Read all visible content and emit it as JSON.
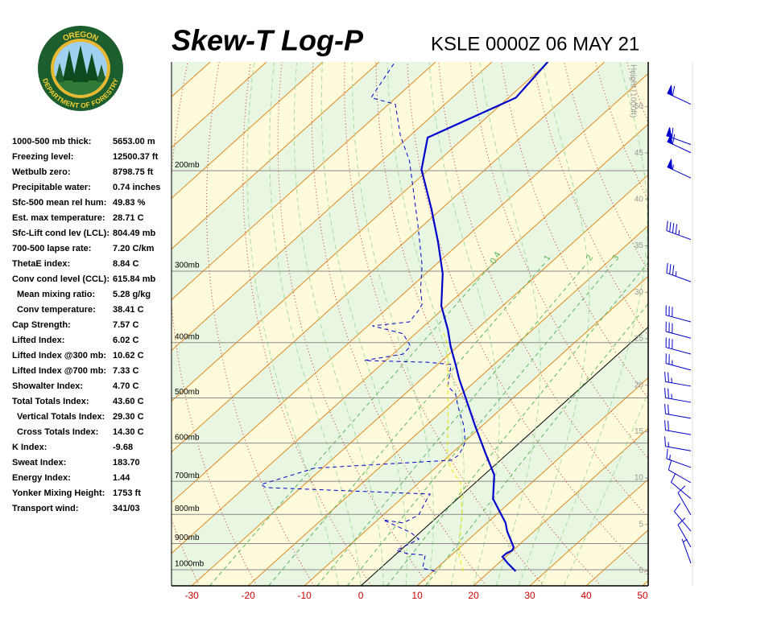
{
  "logo": {
    "top": "OREGON",
    "bottom": "DEPARTMENT OF FORESTRY"
  },
  "stats": [
    {
      "label": "1000-500 mb thick:",
      "value": "5653.00 m"
    },
    {
      "label": "Freezing level:",
      "value": "12500.37 ft"
    },
    {
      "label": "Wetbulb zero:",
      "value": "8798.75 ft"
    },
    {
      "label": "Precipitable water:",
      "value": "0.74 inches"
    },
    {
      "label": "Sfc-500 mean rel hum:",
      "value": "49.83 %"
    },
    {
      "label": "Est. max temperature:",
      "value": "28.71 C"
    },
    {
      "label": "Sfc-Lift cond lev (LCL):",
      "value": "804.49 mb"
    },
    {
      "label": "700-500 lapse rate:",
      "value": "7.20 C/km"
    },
    {
      "label": "ThetaE index:",
      "value": "8.84 C"
    },
    {
      "label": "Conv cond level (CCL):",
      "value": "615.84 mb"
    },
    {
      "label": "Mean mixing ratio:",
      "value": "5.28 g/kg",
      "indent": true
    },
    {
      "label": "Conv temperature:",
      "value": "38.41 C",
      "indent": true
    },
    {
      "label": "Cap Strength:",
      "value": "7.57 C"
    },
    {
      "label": "Lifted Index:",
      "value": "6.02 C"
    },
    {
      "label": "Lifted Index @300 mb:",
      "value": "10.62 C"
    },
    {
      "label": "Lifted Index @700 mb:",
      "value": "7.33 C"
    },
    {
      "label": "Showalter Index:",
      "value": "4.70 C"
    },
    {
      "label": "Total Totals Index:",
      "value": "43.60 C"
    },
    {
      "label": "Vertical Totals Index:",
      "value": "29.30 C",
      "indent": true
    },
    {
      "label": "Cross Totals Index:",
      "value": "14.30 C",
      "indent": true
    },
    {
      "label": "K Index:",
      "value": "-9.68"
    },
    {
      "label": "Sweat Index:",
      "value": "183.70"
    },
    {
      "label": "Energy Index:",
      "value": "1.44"
    },
    {
      "label": "Yonker Mixing Height:",
      "value": "1753 ft"
    },
    {
      "label": "Transport wind:",
      "value": "341/03"
    }
  ],
  "chart_data": {
    "type": "skewt",
    "title": "Skew-T Log-P",
    "subtitle": "KSLE 0000Z 06 MAY 21",
    "xlim": [
      -33.6,
      51
    ],
    "xticks": [
      -30,
      -20,
      -10,
      0,
      10,
      20,
      30,
      40,
      50
    ],
    "xtick_color": "#cc0000",
    "ylim": [
      1067,
      129
    ],
    "log_scale": true,
    "yticks": [
      {
        "value": 1000,
        "label": "1000mb"
      },
      {
        "value": 900,
        "label": "900mb"
      },
      {
        "value": 800,
        "label": "800mb"
      },
      {
        "value": 700,
        "label": "700mb"
      },
      {
        "value": 600,
        "label": "600mb"
      },
      {
        "value": 500,
        "label": "500mb"
      },
      {
        "value": 400,
        "label": "400mb"
      },
      {
        "value": 300,
        "label": "300mb"
      },
      {
        "value": 200,
        "label": "200mb"
      }
    ],
    "y2label": "Height (1000ft)",
    "y2lim": [
      -1.6,
      54.8
    ],
    "y2ticks": [
      0,
      5,
      10,
      15,
      20,
      25,
      30,
      35,
      40,
      45,
      50
    ],
    "mixing_ratios": [
      0.4,
      1,
      2,
      3,
      5,
      8
    ],
    "isotherm_color": "#e08a1e",
    "zero_isotherm_color": "#000000",
    "band_colors": [
      "#e8f6e2",
      "#fdfbdc"
    ],
    "dry_adiabat_color": "#cc3333",
    "moist_adiabat_color": "#a8dca0",
    "mixing_ratio_color": "#5cb85c",
    "series": [
      {
        "color": "#0000cc",
        "dash": false,
        "pressure": [
          1006,
          974,
          949,
          937,
          925,
          913,
          856,
          828,
          751,
          682,
          629,
          561,
          509,
          462,
          440,
          406,
          380,
          345,
          303,
          266,
          234,
          199,
          175,
          149,
          129
        ],
        "temperature": [
          24.6,
          21.6,
          19.4,
          19.4,
          19.9,
          19.5,
          15.2,
          13.3,
          6.3,
          1.8,
          -3.6,
          -11.1,
          -17.3,
          -23.5,
          -26.4,
          -31.3,
          -35,
          -40.9,
          -47,
          -54.2,
          -61.6,
          -71.3,
          -76.5,
          -68.7,
          -70.1
        ]
      },
      {
        "color": "#0000cc",
        "dash": true,
        "pressure": [
          1006,
          994,
          943,
          937,
          925,
          913,
          884,
          861,
          818,
          828,
          802,
          751,
          737,
          718,
          709,
          664,
          643,
          629,
          599,
          561,
          517,
          493,
          477,
          437,
          433,
          430,
          419,
          406,
          386,
          380,
          374,
          368,
          350,
          343,
          323,
          293,
          249,
          192,
          174,
          153,
          149,
          129
        ],
        "temperature": [
          10.3,
          7.5,
          5.4,
          1.9,
          -0.7,
          -0.2,
          1.1,
          -1.6,
          -9,
          -4.9,
          -3.7,
          -5.4,
          -5.8,
          -36.2,
          -37.7,
          -31.4,
          -8.7,
          -8.4,
          -9.7,
          -13.1,
          -18.2,
          -20.9,
          -23.9,
          -27.6,
          -32.4,
          -43.8,
          -38.2,
          -38.4,
          -42.2,
          -45.6,
          -49.2,
          -43.4,
          -44.1,
          -44.6,
          -47.8,
          -52.3,
          -61,
          -75.2,
          -81.6,
          -88.8,
          -94.4,
          -97.2
        ]
      },
      {
        "color": "#e6e600",
        "dash": true,
        "pressure": [
          1006,
          943,
          856,
          802,
          704,
          662,
          620,
          531,
          462,
          406,
          380
        ],
        "temperature": [
          15.3,
          11.4,
          6.9,
          4,
          -2.6,
          -7.5,
          -11.2,
          -18.6,
          -25.5,
          -31.8,
          -35.9
        ]
      }
    ],
    "winds": {
      "color": "#0000cc",
      "pressure": [
        974,
        913,
        856,
        802,
        751,
        704,
        662,
        619,
        580,
        543,
        509,
        477,
        447,
        419,
        393,
        368,
        313,
        264,
        206,
        186,
        180,
        153
      ],
      "direction": [
        340,
        330,
        320,
        330,
        310,
        300,
        290,
        280,
        280,
        280,
        280,
        280,
        285,
        285,
        285,
        285,
        290,
        290,
        295,
        295,
        290,
        295
      ],
      "speed": [
        5,
        10,
        10,
        10,
        10,
        10,
        15,
        15,
        20,
        20,
        25,
        25,
        25,
        30,
        30,
        30,
        35,
        45,
        55,
        60,
        60,
        60
      ]
    }
  }
}
